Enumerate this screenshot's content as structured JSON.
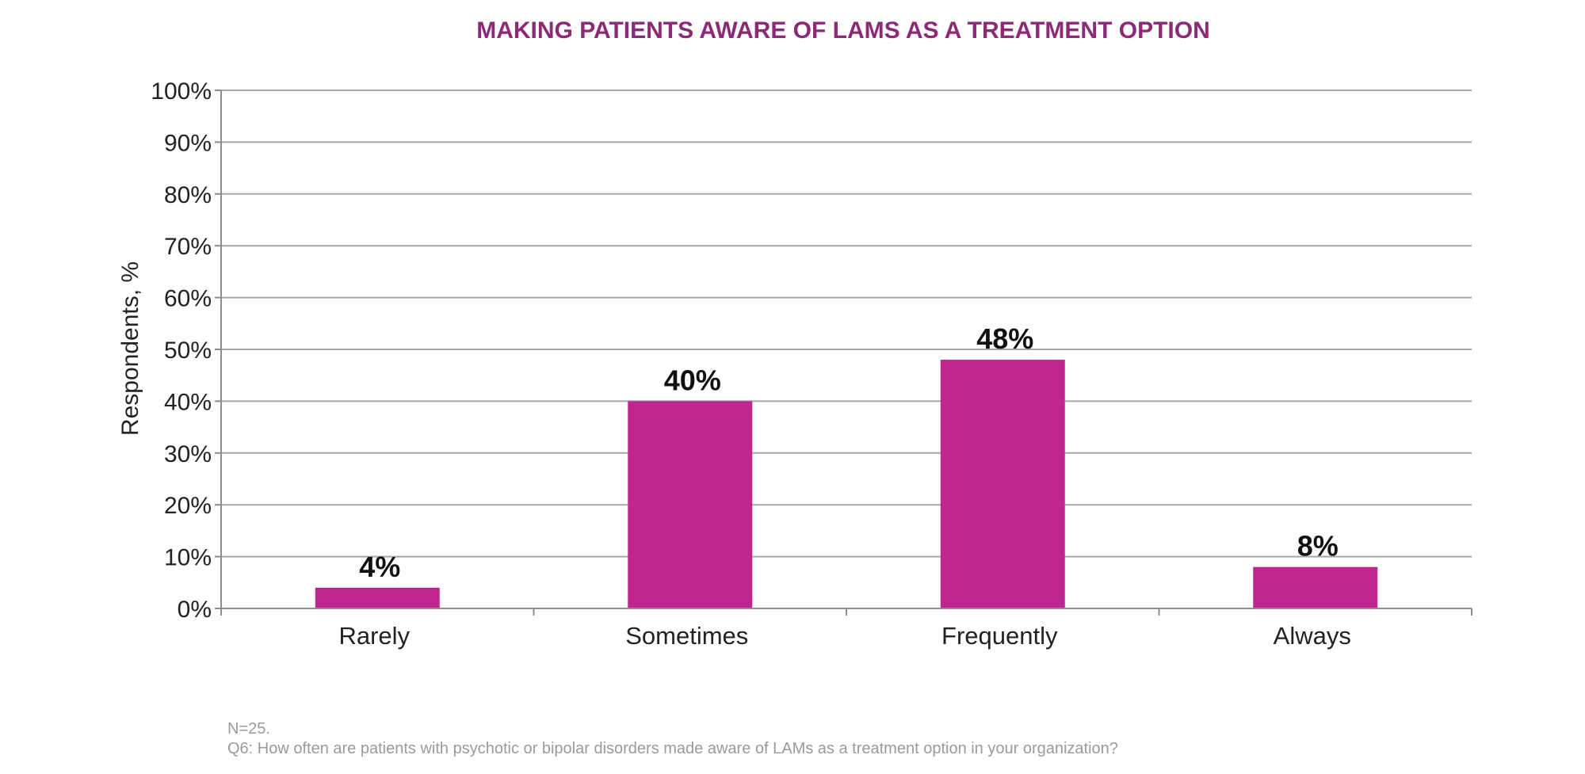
{
  "chart_data": {
    "type": "bar",
    "title": "MAKING PATIENTS AWARE OF LAMS AS A TREATMENT OPTION",
    "categories": [
      "Rarely",
      "Sometimes",
      "Frequently",
      "Always"
    ],
    "values": [
      4,
      40,
      48,
      8
    ],
    "data_labels": [
      "4%",
      "40%",
      "48%",
      "8%"
    ],
    "xlabel": "",
    "ylabel": "Respondents, %",
    "ylim": [
      0,
      100
    ],
    "yticks": [
      0,
      10,
      20,
      30,
      40,
      50,
      60,
      70,
      80,
      90,
      100
    ],
    "ytick_labels": [
      "0%",
      "10%",
      "20%",
      "30%",
      "40%",
      "50%",
      "60%",
      "70%",
      "80%",
      "90%",
      "100%"
    ],
    "grid": true,
    "bar_color": "#c0268f",
    "title_color": "#8c2a78"
  },
  "footnotes": {
    "sample": "N=25.",
    "question": "Q6: How often are patients with psychotic or bipolar disorders made aware of LAMs as a treatment option in your organization?"
  }
}
